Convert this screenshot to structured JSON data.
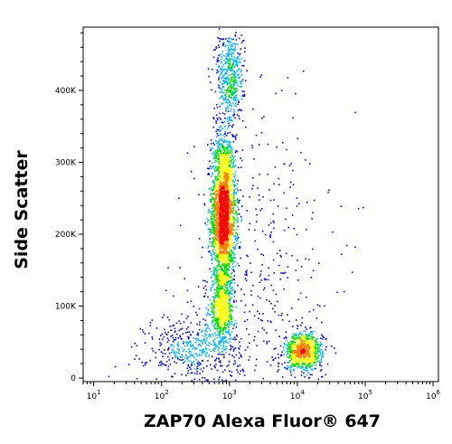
{
  "chart_data": {
    "type": "scatter",
    "subtype": "flow-cytometry-density-dot-plot",
    "title": "",
    "xlabel": "ZAP70 Alexa Fluor® 647",
    "ylabel": "Side Scatter",
    "x_scale": "log",
    "xlim": [
      7,
      1200000
    ],
    "ylim": [
      -5000,
      488000
    ],
    "x_ticks": [
      {
        "value": 10,
        "base": "10",
        "exp": "1"
      },
      {
        "value": 100,
        "base": "10",
        "exp": "2"
      },
      {
        "value": 1000,
        "base": "10",
        "exp": "3"
      },
      {
        "value": 10000,
        "base": "10",
        "exp": "4"
      },
      {
        "value": 100000,
        "base": "10",
        "exp": "5"
      },
      {
        "value": 1000000,
        "base": "10",
        "exp": "6"
      }
    ],
    "y_ticks": [
      {
        "value": 0,
        "label": "0"
      },
      {
        "value": 100000,
        "label": "100K"
      },
      {
        "value": 200000,
        "label": "200K"
      },
      {
        "value": 300000,
        "label": "300K"
      },
      {
        "value": 400000,
        "label": "400K"
      }
    ],
    "grid": false,
    "legend": "none",
    "density_colormap": [
      "#0000ff",
      "#00b4ff",
      "#00e000",
      "#ffff00",
      "#ff8000",
      "#ff0000"
    ],
    "populations": [
      {
        "center_x": 800,
        "center_y": 230000,
        "log_sd_x": 0.09,
        "sd_y": 55000,
        "points": 2600
      },
      {
        "center_x": 750,
        "center_y": 95000,
        "log_sd_x": 0.09,
        "sd_y": 25000,
        "points": 600
      },
      {
        "center_x": 300,
        "center_y": 40000,
        "log_sd_x": 0.35,
        "sd_y": 25000,
        "points": 500
      },
      {
        "center_x": 12000,
        "center_y": 38000,
        "log_sd_x": 0.14,
        "sd_y": 13000,
        "points": 800
      },
      {
        "center_x": 1000,
        "center_y": 420000,
        "log_sd_x": 0.1,
        "sd_y": 35000,
        "points": 500
      },
      {
        "center_x": 3000,
        "center_y": 150000,
        "log_sd_x": 0.5,
        "sd_y": 120000,
        "points": 400
      }
    ]
  }
}
